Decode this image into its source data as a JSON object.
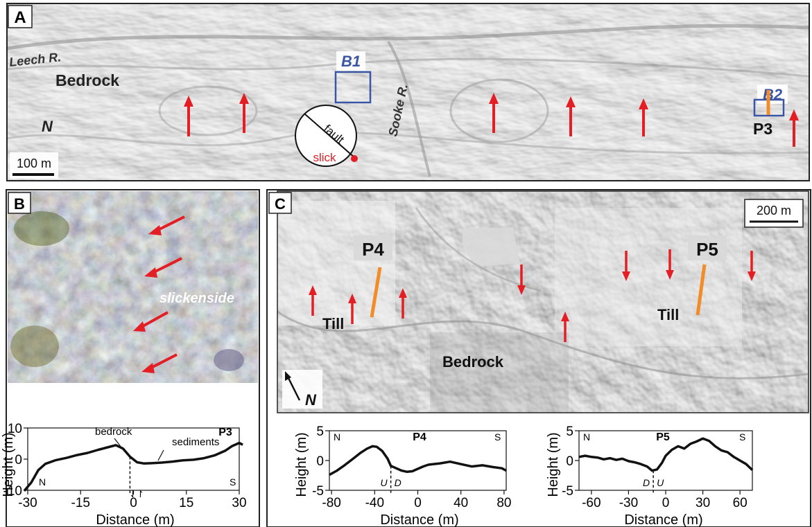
{
  "panel_a": {
    "letter": "A",
    "labels": {
      "river_leech": "Leech R.",
      "bedrock": "Bedrock",
      "north": "N",
      "river_sooke": "Sooke R.",
      "profile": "P3",
      "box_b1": "B1",
      "box_b2": "B2"
    },
    "scale_bar": "100 m",
    "stereonet": {
      "fault": "fault",
      "slick": "slick"
    }
  },
  "panel_b": {
    "letter": "B",
    "photo_label": "slickenside"
  },
  "panel_c": {
    "letter": "C",
    "scale_bar": "200 m",
    "labels": {
      "p4": "P4",
      "p5": "P5",
      "till_left": "Till",
      "till_right": "Till",
      "bedrock": "Bedrock",
      "north": "N"
    }
  },
  "colors": {
    "arrow": "#e31e24",
    "profile_line": "#f28c28",
    "box": "#3b55a5",
    "slick": "#e31e24"
  },
  "chart_data": [
    {
      "type": "line",
      "title": "P3",
      "xlabel": "Distance (m)",
      "ylabel": "Height (m)",
      "xlim": [
        -30,
        30
      ],
      "ylim": [
        -10,
        10
      ],
      "xticks": [
        "-30",
        "-15",
        "0",
        "15",
        "30"
      ],
      "yticks": [
        "-10",
        "0",
        "10"
      ],
      "corner_left": "N",
      "corner_right": "S",
      "annotations": [
        "bedrock",
        "sediments"
      ],
      "fault_marker": "⇃↾",
      "fault_x": -1,
      "x": [
        -31,
        -29,
        -27,
        -25,
        -22,
        -19,
        -16,
        -13,
        -10,
        -7,
        -5,
        -3,
        -1,
        1,
        3,
        5,
        8,
        11,
        14,
        17,
        20,
        23,
        26,
        28,
        30,
        31
      ],
      "y": [
        -10.2,
        -7.5,
        -3.5,
        -1.5,
        -0.3,
        0.4,
        1.3,
        2.0,
        3.0,
        3.9,
        4.5,
        3.4,
        0.8,
        -1.0,
        -1.4,
        -1.3,
        -1.1,
        -0.8,
        -0.4,
        -0.2,
        0.3,
        1.2,
        2.7,
        4.2,
        5.2,
        4.6
      ]
    },
    {
      "type": "line",
      "title": "P4",
      "xlabel": "Distance (m)",
      "ylabel": "Height (m)",
      "xlim": [
        -82,
        82
      ],
      "ylim": [
        -5,
        5
      ],
      "xticks": [
        "-80",
        "-40",
        "0",
        "40",
        "80"
      ],
      "yticks": [
        "-5",
        "0",
        "5"
      ],
      "corner_left": "N",
      "corner_right": "S",
      "fault_x": -25,
      "fault_left": "U",
      "fault_right": "D",
      "x": [
        -82,
        -75,
        -68,
        -60,
        -53,
        -47,
        -42,
        -38,
        -33,
        -28,
        -25,
        -20,
        -15,
        -10,
        -5,
        0,
        5,
        10,
        20,
        30,
        40,
        50,
        60,
        70,
        78,
        82
      ],
      "y": [
        -2.4,
        -1.7,
        -0.8,
        0.3,
        1.3,
        2.0,
        2.4,
        2.3,
        1.6,
        0.3,
        -0.9,
        -1.3,
        -1.7,
        -1.9,
        -1.8,
        -1.4,
        -1.0,
        -0.7,
        -0.5,
        -0.2,
        -0.6,
        -1.0,
        -0.8,
        -1.1,
        -1.3,
        -1.7
      ]
    },
    {
      "type": "line",
      "title": "P5",
      "xlabel": "Distance (m)",
      "ylabel": "Height (m)",
      "xlim": [
        -70,
        70
      ],
      "ylim": [
        -5,
        5
      ],
      "xticks": [
        "-60",
        "-30",
        "0",
        "30",
        "60"
      ],
      "yticks": [
        "-5",
        "0",
        "5"
      ],
      "corner_left": "N",
      "corner_right": "S",
      "fault_x": -10,
      "fault_left": "D",
      "fault_right": "U",
      "x": [
        -70,
        -65,
        -60,
        -55,
        -50,
        -45,
        -40,
        -35,
        -30,
        -25,
        -20,
        -15,
        -11,
        -7,
        -3,
        0,
        5,
        10,
        15,
        20,
        25,
        30,
        35,
        40,
        45,
        50,
        55,
        60,
        65,
        70
      ],
      "y": [
        0.6,
        0.8,
        0.6,
        0.5,
        0.2,
        0.4,
        0.1,
        0.3,
        -0.1,
        -0.3,
        -0.6,
        -1.0,
        -1.7,
        -1.5,
        -0.4,
        0.8,
        1.8,
        2.4,
        2.0,
        2.8,
        3.2,
        3.7,
        3.3,
        2.4,
        1.7,
        1.4,
        0.6,
        0.0,
        -0.6,
        -1.6
      ]
    }
  ]
}
